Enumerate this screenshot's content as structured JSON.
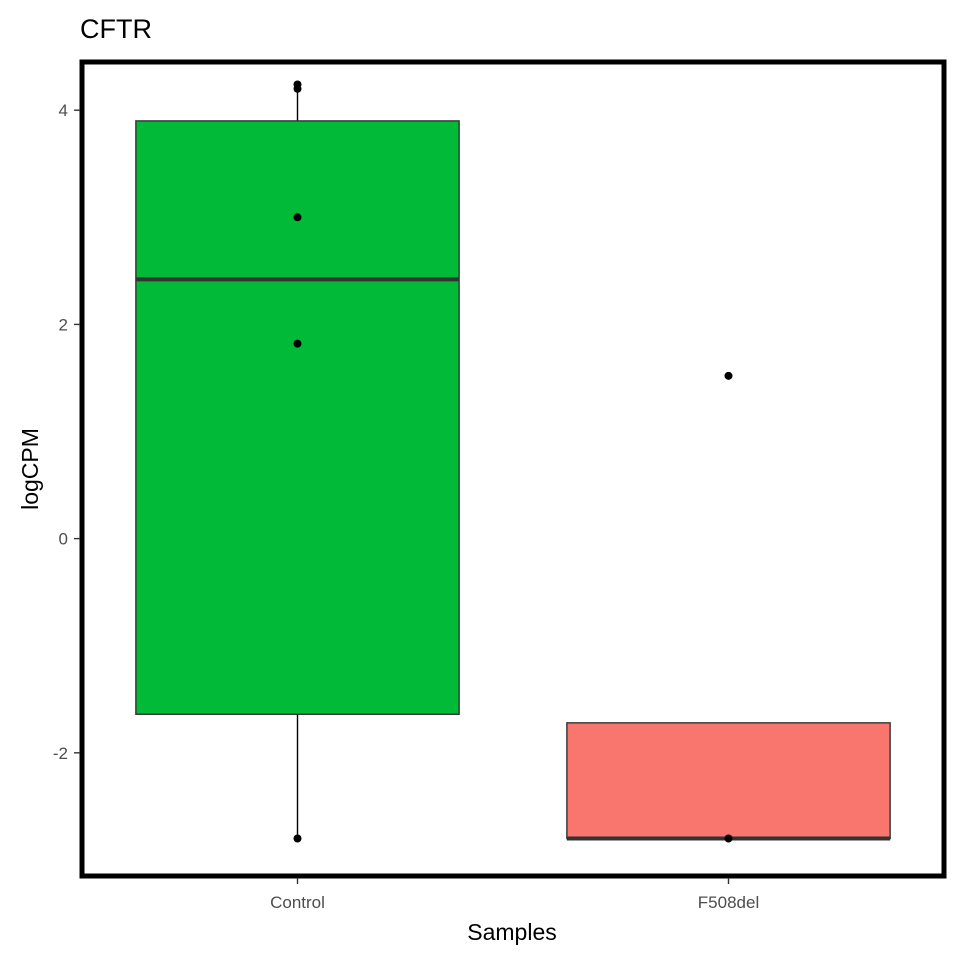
{
  "chart_data": {
    "type": "box",
    "title": "CFTR",
    "xlabel": "Samples",
    "ylabel": "logCPM",
    "ylim": [
      -3.15,
      4.45
    ],
    "yticks": [
      -2,
      0,
      2,
      4
    ],
    "grid": false,
    "legend": "none",
    "categories": [
      "Control",
      "F508del"
    ],
    "boxes": [
      {
        "category": "Control",
        "color": "#00BA38",
        "q1": -1.64,
        "median": 2.42,
        "q3": 3.9,
        "whisker_low": -2.8,
        "whisker_high": 4.24,
        "points": [
          4.24,
          4.2,
          3.0,
          1.82,
          -2.8
        ]
      },
      {
        "category": "F508del",
        "color": "#F8766D",
        "q1": -2.8,
        "median": -2.8,
        "q3": -1.72,
        "whisker_low": -2.8,
        "whisker_high": -1.72,
        "points": [
          1.52,
          -2.8
        ]
      }
    ]
  }
}
